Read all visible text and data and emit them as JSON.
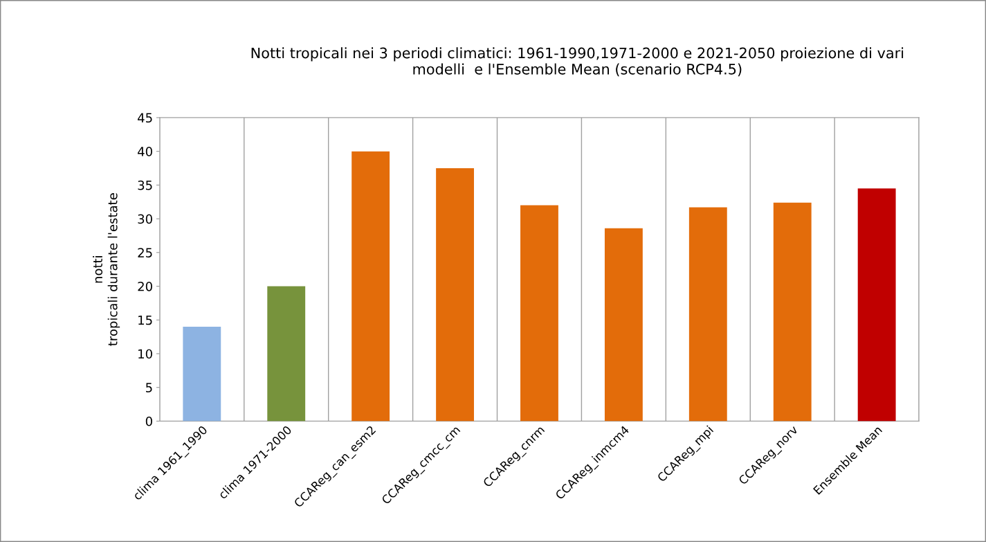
{
  "chart_data": {
    "type": "bar",
    "title": "Notti tropicali nei 3 periodi climatici: 1961-1990,1971-2000 e 2021-2050 proiezione di vari\nmodelli  e l'Ensemble Mean (scenario RCP4.5)",
    "ylabel": "notti\ntropicali durante l'estate",
    "categories": [
      "clima 1961_1990",
      "clima 1971-2000",
      "CCAReg_can_esm2",
      "CCAReg_cmcc_cm",
      "CCAReg_cnrm",
      "CCAReg_inmcm4",
      "CCAReg_mpi",
      "CCAReg_norv",
      "Ensemble Mean"
    ],
    "values": [
      14,
      20,
      40,
      37.5,
      32,
      28.6,
      31.7,
      32.4,
      34.5
    ],
    "colors": [
      "#8db3e2",
      "#77933c",
      "#e36c0a",
      "#e36c0a",
      "#e36c0a",
      "#e36c0a",
      "#e36c0a",
      "#e36c0a",
      "#c00000"
    ],
    "ylim": [
      0,
      45
    ],
    "yticks": [
      0,
      5,
      10,
      15,
      20,
      25,
      30,
      35,
      40,
      45
    ],
    "grid": "x"
  }
}
